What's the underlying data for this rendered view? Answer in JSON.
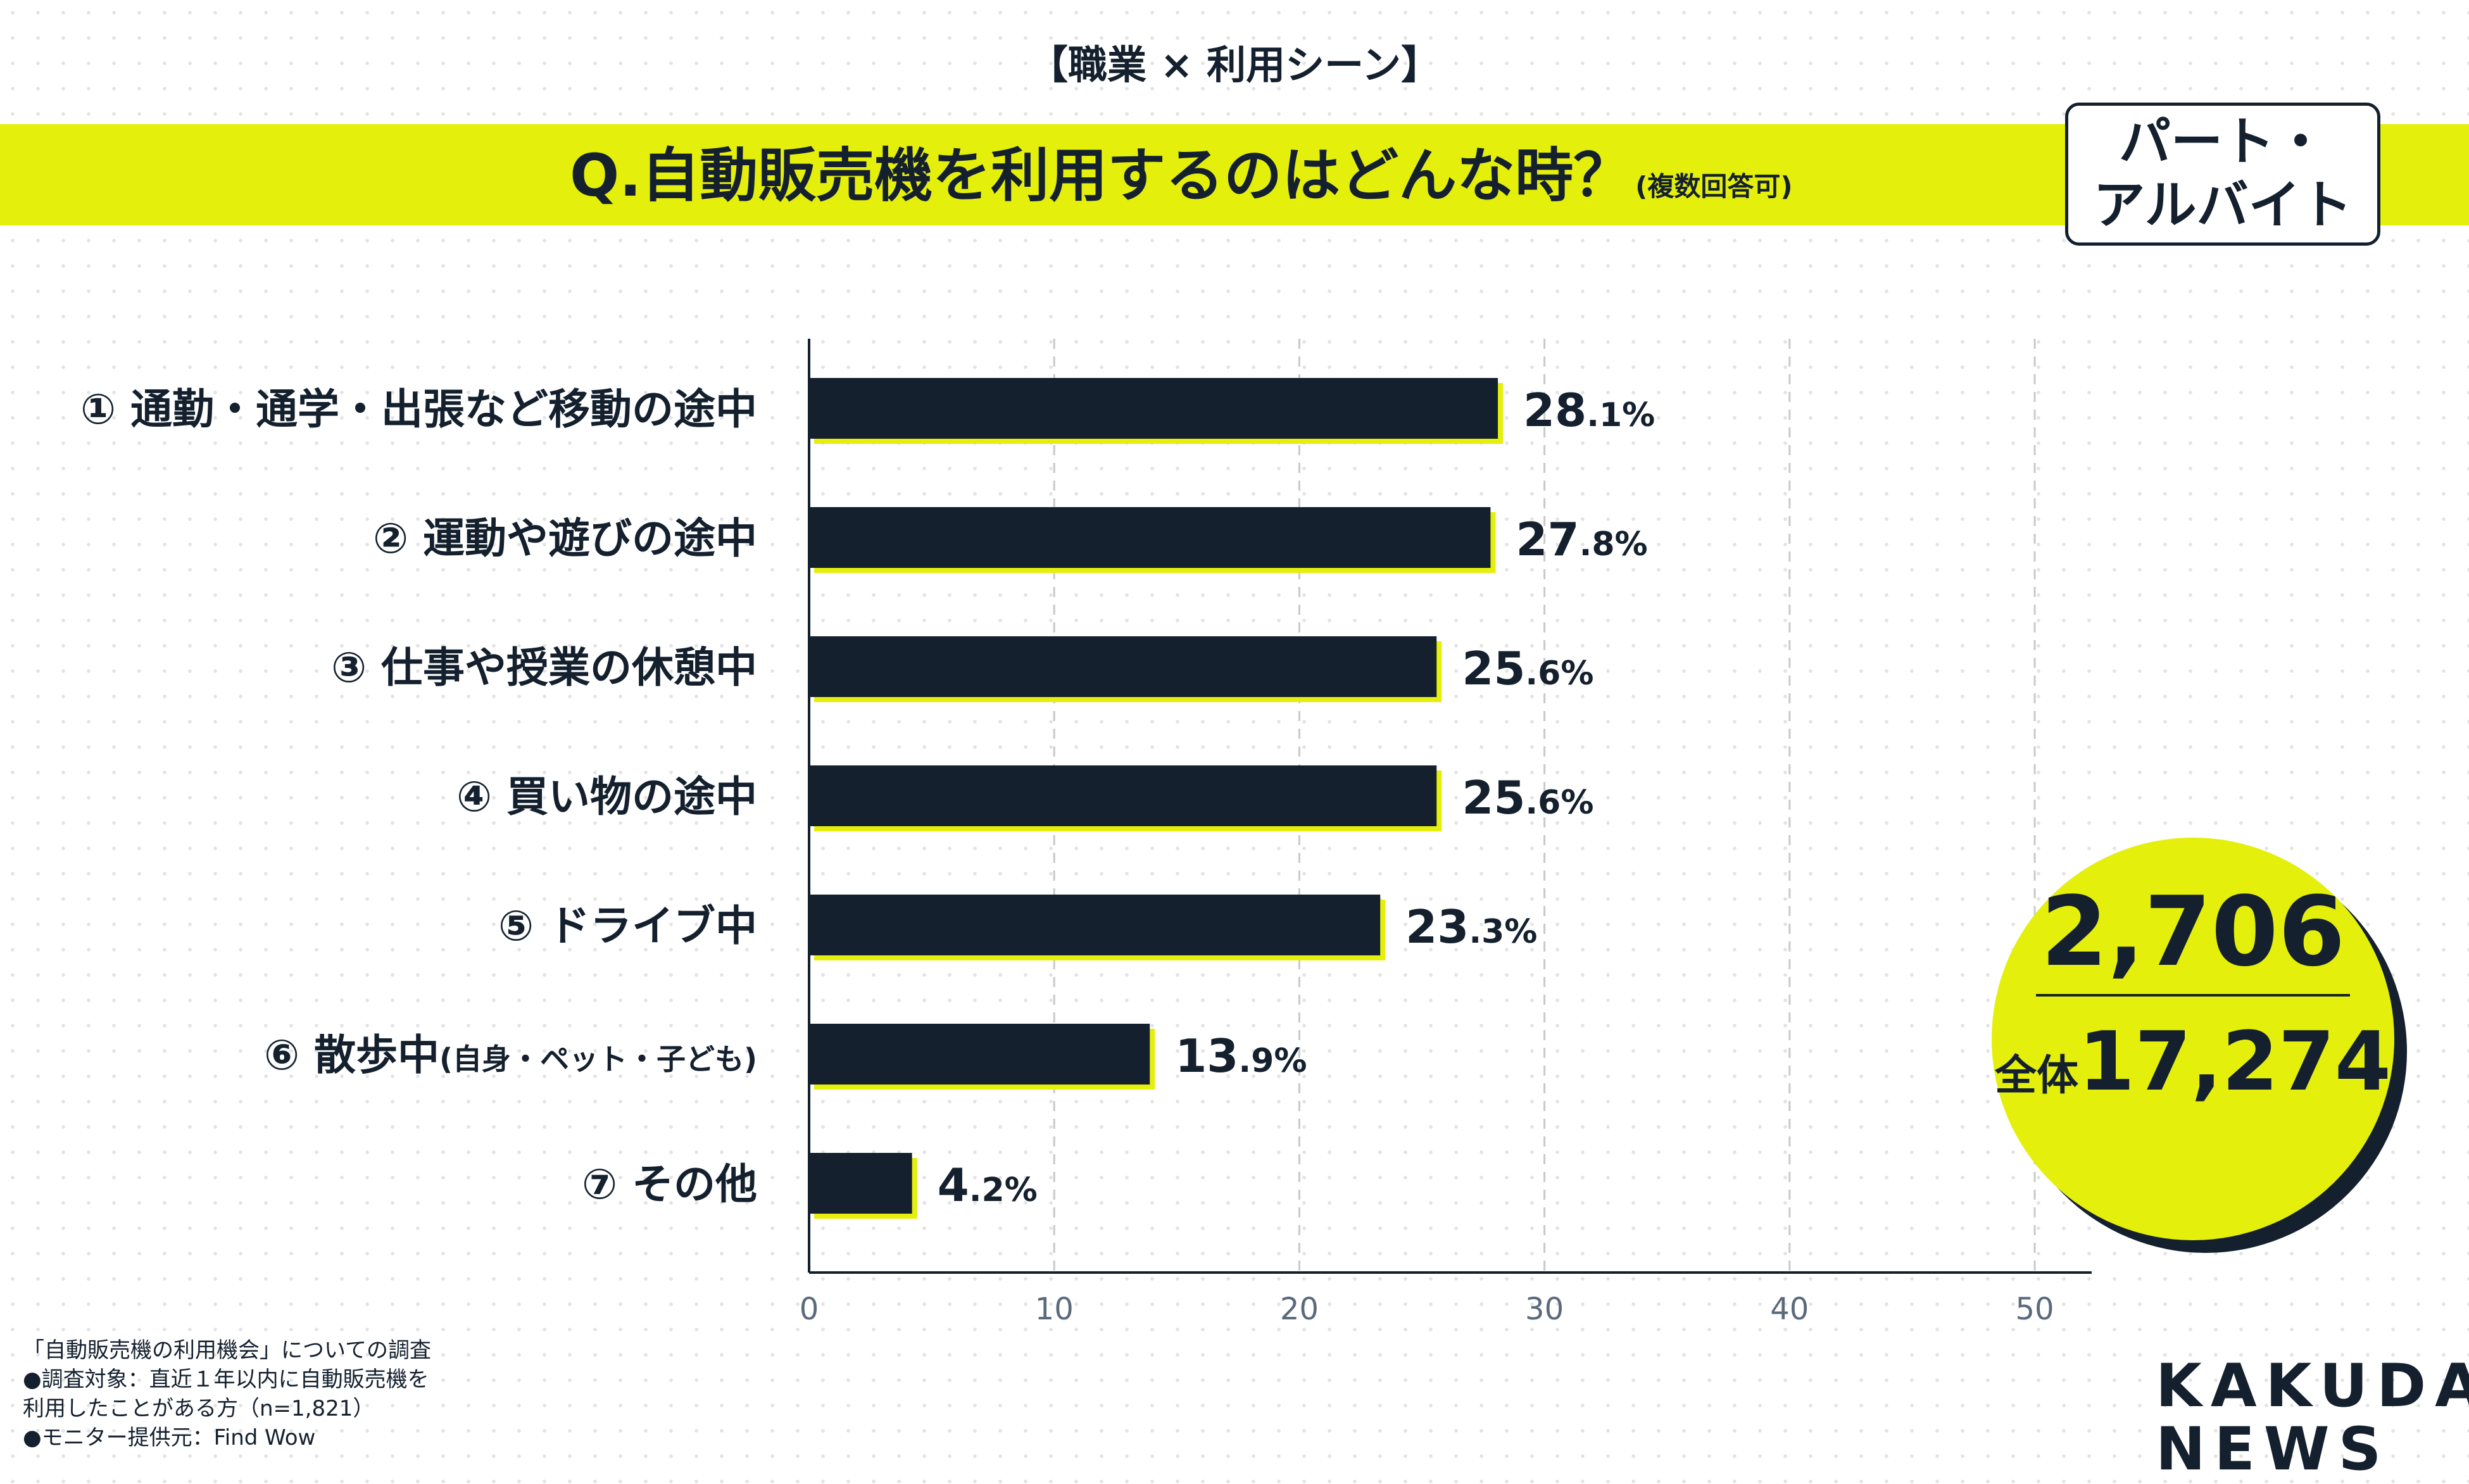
{
  "header": {
    "topic": "【職業 × 利用シーン】",
    "question": "Q.自動販売機を利用するのはどんな時？",
    "question_note": "(複数回答可)",
    "badge_line1": "パート・",
    "badge_line2": "アルバイト"
  },
  "chart_data": {
    "type": "bar",
    "orientation": "horizontal",
    "categories": [
      "① 通勤・通学・出張など移動の途中",
      "② 運動や遊びの途中",
      "③ 仕事や授業の休憩中",
      "④ 買い物の途中",
      "⑤ ドライブ中",
      "⑥ 散歩中",
      "⑦ その他"
    ],
    "category_notes": [
      "",
      "",
      "",
      "",
      "",
      "(自身・ペット・子ども)",
      ""
    ],
    "values": [
      28.1,
      27.8,
      25.6,
      25.6,
      23.3,
      13.9,
      4.2
    ],
    "value_suffix": "%",
    "xlim": [
      0,
      50
    ],
    "xticks": [
      0,
      10,
      20,
      30,
      40,
      50
    ],
    "grid": true,
    "bar_color": "#14202e",
    "accent_color": "#e4ef0b"
  },
  "summary": {
    "count": "2,706",
    "total_label": "全体",
    "total": "17,274"
  },
  "footnotes": [
    "「自動販売機の利用機会」についての調査",
    "●調査対象：直近１年以内に自動販売機を",
    "利用したことがある方（n=1,821）",
    "●モニター提供元：Find Wow"
  ],
  "logo": {
    "line1": "KAKUDAI",
    "line2": "NEWS"
  }
}
